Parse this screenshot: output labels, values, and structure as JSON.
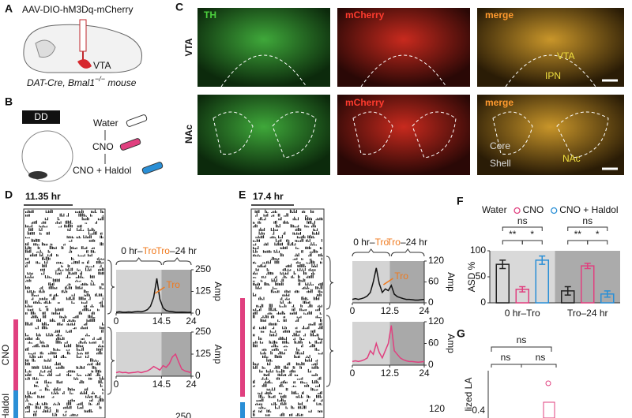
{
  "panel_a": {
    "label": "A",
    "construct": "AAV-DIO-hM3Dq-mCherry",
    "region": "VTA",
    "mouse": [
      "DAT-Cre, Bmal1",
      "−/−",
      " mouse"
    ]
  },
  "panel_b": {
    "label": "B",
    "condition": "DD",
    "treatments": [
      "Water",
      "CNO",
      "CNO + Haldol"
    ]
  },
  "panel_c": {
    "label": "C",
    "rows": [
      "VTA",
      "NAc"
    ],
    "channels": [
      "TH",
      "mCherry",
      "merge"
    ],
    "row2_channels": [
      "mCherry",
      "merge"
    ],
    "regions": [
      "VTA",
      "IPN",
      "Core",
      "Shell",
      "NAc"
    ]
  },
  "panel_d": {
    "label": "D",
    "period": "11.35 hr",
    "windows": [
      [
        "0 hr–",
        "Tro"
      ],
      [
        "Tro",
        "–24 hr"
      ]
    ],
    "side_labels": [
      "CNO",
      "Haldol"
    ],
    "partial_tick": "250"
  },
  "panel_e": {
    "label": "E",
    "period": "17.4 hr",
    "windows": [
      [
        "0 hr–",
        "Tro"
      ],
      [
        "Tro",
        "–24 hr"
      ]
    ],
    "partial_tick": "120"
  },
  "panel_f": {
    "label": "F"
  },
  "panel_g": {
    "label": "G",
    "annotations": [
      "ns",
      "ns",
      "ns"
    ],
    "ytick": "0.4",
    "ylabel": "lized LA"
  },
  "chart_data": [
    {
      "type": "line",
      "xlim": [
        0,
        24
      ],
      "xticks": [
        0,
        14.5,
        24
      ],
      "ylim": [
        0,
        250
      ],
      "yticks": [
        0,
        125,
        250
      ],
      "ylabel": "Amp",
      "annotation": "Tro",
      "x": [
        0,
        1,
        2,
        3,
        4,
        5,
        6,
        7,
        8,
        9,
        10,
        11,
        12,
        13,
        14,
        15,
        16,
        17,
        18,
        19,
        20,
        21,
        22,
        23,
        24
      ],
      "series": [
        {
          "color": "#111111",
          "values": [
            5,
            8,
            6,
            5,
            7,
            6,
            8,
            10,
            8,
            12,
            20,
            40,
            90,
            200,
            80,
            30,
            15,
            10,
            8,
            6,
            5,
            6,
            5,
            4,
            5
          ]
        }
      ]
    },
    {
      "type": "line",
      "xlim": [
        0,
        24
      ],
      "xticks": [
        0,
        14.5,
        24
      ],
      "ylim": [
        0,
        250
      ],
      "yticks": [
        0,
        125,
        250
      ],
      "ylabel": "Amp",
      "x": [
        0,
        1,
        2,
        3,
        4,
        5,
        6,
        7,
        8,
        9,
        10,
        11,
        12,
        13,
        14,
        15,
        16,
        17,
        18,
        19,
        20,
        21,
        22,
        23,
        24
      ],
      "series": [
        {
          "color": "#e0407f",
          "values": [
            20,
            25,
            20,
            22,
            18,
            20,
            22,
            25,
            20,
            25,
            30,
            40,
            55,
            45,
            35,
            60,
            50,
            70,
            110,
            125,
            80,
            40,
            30,
            25,
            20
          ]
        }
      ]
    },
    {
      "type": "line",
      "xlim": [
        0,
        24
      ],
      "xticks": [
        0,
        12.5,
        24
      ],
      "ylim": [
        0,
        120
      ],
      "yticks": [
        0,
        60,
        120
      ],
      "ylabel": "Amp",
      "annotation": "Tro",
      "x": [
        0,
        1,
        2,
        3,
        4,
        5,
        6,
        7,
        8,
        9,
        10,
        11,
        12,
        13,
        14,
        15,
        16,
        17,
        18,
        19,
        20,
        21,
        22,
        23,
        24
      ],
      "series": [
        {
          "color": "#111111",
          "values": [
            10,
            12,
            10,
            12,
            15,
            20,
            30,
            60,
            100,
            55,
            30,
            40,
            35,
            50,
            25,
            18,
            15,
            12,
            10,
            10,
            9,
            8,
            8,
            9,
            10
          ]
        }
      ]
    },
    {
      "type": "line",
      "xlim": [
        0,
        24
      ],
      "xticks": [
        0,
        12.5,
        24
      ],
      "ylim": [
        0,
        120
      ],
      "yticks": [
        0,
        60,
        120
      ],
      "ylabel": "Amp",
      "x": [
        0,
        1,
        2,
        3,
        4,
        5,
        6,
        7,
        8,
        9,
        10,
        11,
        12,
        13,
        14,
        15,
        16,
        17,
        18,
        19,
        20,
        21,
        22,
        23,
        24
      ],
      "series": [
        {
          "color": "#e0407f",
          "values": [
            10,
            12,
            10,
            12,
            15,
            20,
            40,
            30,
            60,
            35,
            20,
            40,
            60,
            110,
            40,
            30,
            20,
            15,
            12,
            10,
            10,
            9,
            8,
            9,
            10
          ]
        }
      ]
    },
    {
      "type": "bar",
      "ylabel": "ASD %",
      "ylim": [
        0,
        100
      ],
      "yticks": [
        0,
        50,
        100
      ],
      "categories": [
        "0 hr–Tro",
        "Tro–24 hr"
      ],
      "series": [
        {
          "name": "Water",
          "color": "#222222",
          "values": [
            74,
            23
          ],
          "errors": [
            8,
            8
          ]
        },
        {
          "name": "CNO",
          "color": "#e0407f",
          "values": [
            26,
            71
          ],
          "errors": [
            5,
            5
          ]
        },
        {
          "name": "CNO + Haldol",
          "color": "#2a8fd6",
          "values": [
            82,
            17
          ],
          "errors": [
            8,
            6
          ]
        }
      ],
      "annotations": [
        "ns",
        "**",
        "*",
        "ns",
        "**",
        "*"
      ]
    }
  ]
}
